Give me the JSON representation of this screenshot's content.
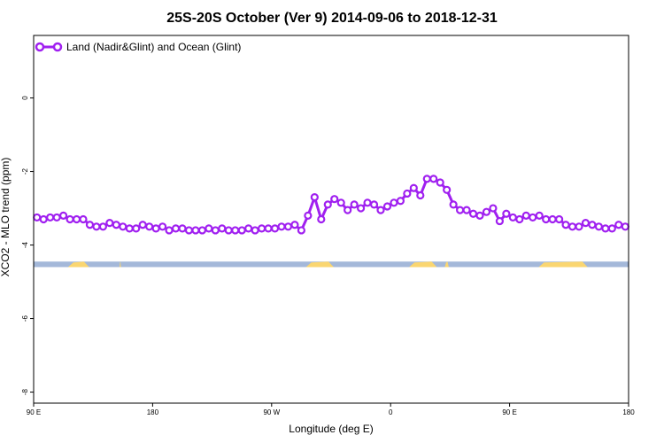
{
  "chart_data": {
    "type": "line",
    "title": "25S-20S October (Ver 9)   2014-09-06 to 2018-12-31",
    "xlabel": "Longitude (deg E)",
    "ylabel": "XCO2 - MLO trend (ppm)",
    "xlim": [
      90,
      540
    ],
    "ylim": [
      -8.3,
      1.7
    ],
    "x_ticks": [
      {
        "value": 90,
        "label": "90 E"
      },
      {
        "value": 180,
        "label": "180"
      },
      {
        "value": 270,
        "label": "90 W"
      },
      {
        "value": 360,
        "label": "0"
      },
      {
        "value": 450,
        "label": "90 E"
      },
      {
        "value": 540,
        "label": "180"
      }
    ],
    "y_ticks": [
      {
        "value": 0,
        "label": "0"
      },
      {
        "value": -2,
        "label": "-2"
      },
      {
        "value": -4,
        "label": "-4"
      },
      {
        "value": -6,
        "label": "-6"
      },
      {
        "value": -8,
        "label": "-8"
      }
    ],
    "legend": {
      "position": "top-left"
    },
    "series": [
      {
        "name": "Land (Nadir&Glint) and Ocean (Glint)",
        "color": "#a020f0",
        "x": [
          92.5,
          97.5,
          102.5,
          107.5,
          112.5,
          117.5,
          122.5,
          127.5,
          132.5,
          137.5,
          142.5,
          147.5,
          152.5,
          157.5,
          162.5,
          167.5,
          172.5,
          177.5,
          182.5,
          187.5,
          192.5,
          197.5,
          202.5,
          207.5,
          212.5,
          217.5,
          222.5,
          227.5,
          232.5,
          237.5,
          242.5,
          247.5,
          252.5,
          257.5,
          262.5,
          267.5,
          272.5,
          277.5,
          282.5,
          287.5,
          292.5,
          297.5,
          302.5,
          307.5,
          312.5,
          317.5,
          322.5,
          327.5,
          332.5,
          337.5,
          342.5,
          347.5,
          352.5,
          357.5,
          362.5,
          367.5,
          372.5,
          377.5,
          382.5,
          387.5,
          392.5,
          397.5,
          402.5,
          407.5,
          412.5,
          417.5,
          422.5,
          427.5,
          432.5,
          437.5,
          442.5,
          447.5,
          452.5,
          457.5,
          462.5,
          467.5,
          472.5,
          477.5,
          482.5,
          487.5,
          492.5,
          497.5,
          502.5,
          507.5,
          512.5,
          517.5,
          522.5,
          527.5,
          532.5,
          537.5
        ],
        "values": [
          -3.25,
          -3.3,
          -3.25,
          -3.25,
          -3.2,
          -3.3,
          -3.3,
          -3.3,
          -3.45,
          -3.5,
          -3.5,
          -3.4,
          -3.45,
          -3.5,
          -3.55,
          -3.55,
          -3.45,
          -3.5,
          -3.55,
          -3.5,
          -3.6,
          -3.55,
          -3.55,
          -3.6,
          -3.6,
          -3.6,
          -3.55,
          -3.6,
          -3.55,
          -3.6,
          -3.6,
          -3.6,
          -3.55,
          -3.6,
          -3.55,
          -3.55,
          -3.55,
          -3.5,
          -3.5,
          -3.45,
          -3.6,
          -3.2,
          -2.7,
          -3.3,
          -2.9,
          -2.75,
          -2.85,
          -3.05,
          -2.9,
          -3.0,
          -2.85,
          -2.9,
          -3.05,
          -2.95,
          -2.85,
          -2.8,
          -2.6,
          -2.45,
          -2.65,
          -2.2,
          -2.2,
          -2.3,
          -2.5,
          -2.9,
          -3.05,
          -3.05,
          -3.15,
          -3.2,
          -3.1,
          -3.0,
          -3.35,
          -3.15,
          -3.25,
          -3.3,
          -3.2,
          -3.25,
          -3.2,
          -3.3,
          -3.3,
          -3.3,
          -3.45,
          -3.5,
          -3.5,
          -3.4,
          -3.45,
          -3.5,
          -3.55,
          -3.55,
          -3.45,
          -3.5
        ]
      }
    ],
    "surface_band": {
      "y_range": [
        -4.6,
        -4.45
      ],
      "ocean_color": "#a4b8d9",
      "land_color": "#fad671",
      "land_segments": [
        [
          116,
          132
        ],
        [
          155,
          156
        ],
        [
          296,
          317
        ],
        [
          374,
          395
        ],
        [
          401,
          404
        ],
        [
          472,
          509
        ]
      ]
    }
  }
}
